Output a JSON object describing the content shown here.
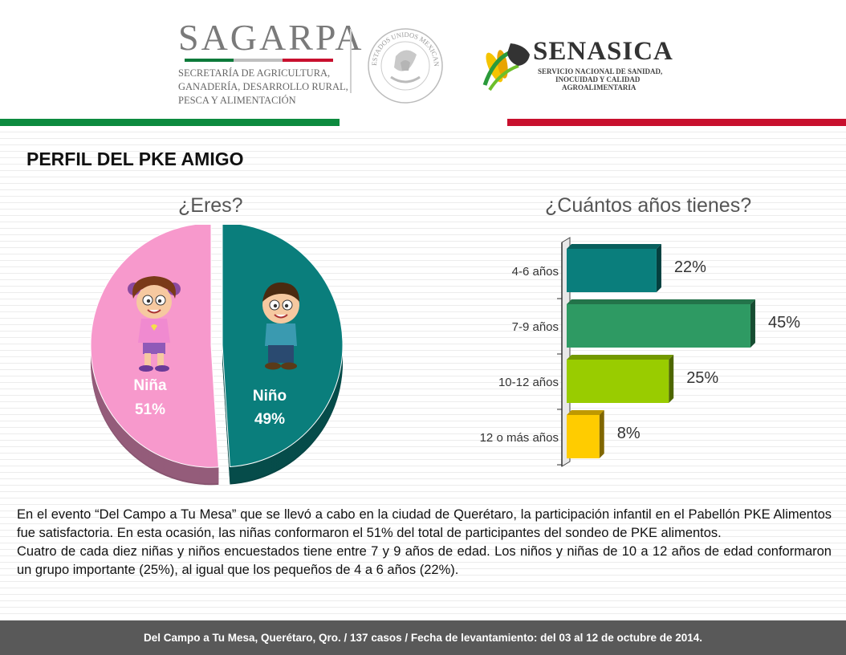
{
  "header": {
    "sagarpa_word": "SAGARPA",
    "sagarpa_lines": [
      "SECRETARÍA DE AGRICULTURA,",
      "GANADERÍA, DESARROLLO RURAL,",
      "PESCA Y ALIMENTACIÓN"
    ],
    "seal_text": "ESTADOS UNIDOS MEXICANOS",
    "senasica_word": "SENASICA",
    "senasica_lines": [
      "SERVICIO NACIONAL DE SANIDAD,",
      "INOCUIDAD Y CALIDAD",
      "AGROALIMENTARIA"
    ],
    "colors": {
      "green": "#0c8a3e",
      "red": "#c8102e"
    }
  },
  "title": "PERFIL DEL PKE AMIGO",
  "question1": "¿Eres?",
  "question2": "¿Cuántos años tienes?",
  "chart_data": [
    {
      "type": "pie",
      "title": "¿Eres?",
      "slices": [
        {
          "label": "Niña",
          "value": 51,
          "display": "51%",
          "color": "#f799cc"
        },
        {
          "label": "Niño",
          "value": 49,
          "display": "49%",
          "color": "#0a7e7c"
        }
      ]
    },
    {
      "type": "bar",
      "orientation": "horizontal",
      "title": "¿Cuántos años tienes?",
      "categories": [
        "4-6 años",
        "7-9 años",
        "10-12 años",
        "12 o más años"
      ],
      "values": [
        22,
        45,
        25,
        8
      ],
      "labels": [
        "22%",
        "45%",
        "25%",
        "8%"
      ],
      "colors": [
        "#0a7e7c",
        "#2e9a63",
        "#99cc00",
        "#ffcc00"
      ],
      "xlim": [
        0,
        50
      ]
    }
  ],
  "paragraph1": "En el evento “Del Campo a Tu Mesa” que se llevó a cabo en la ciudad de Querétaro, la participación infantil en el Pabellón PKE Alimentos fue satisfactoria. En esta ocasión, las niñas conformaron el 51% del total de participantes del sondeo de PKE alimentos.",
  "paragraph2": "Cuatro de cada diez niñas y niños encuestados tiene entre 7 y 9 años de edad. Los niños y niñas de 10 a 12 años de edad conformaron un grupo importante (25%), al igual que los pequeños de 4 a 6 años (22%).",
  "footer": "Del Campo a Tu Mesa, Querétaro, Qro. / 137 casos / Fecha de levantamiento: del 03 al 12 de octubre de 2014."
}
